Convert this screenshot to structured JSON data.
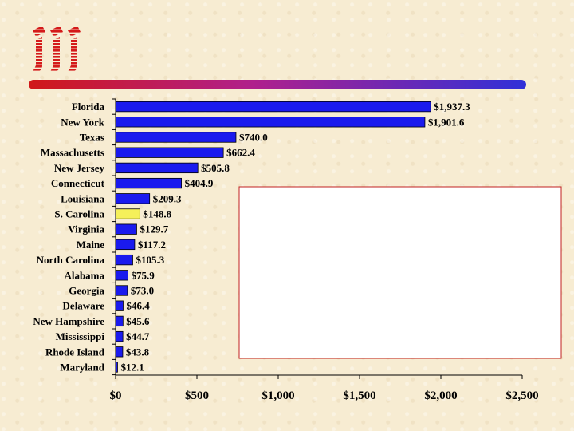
{
  "logo": {
    "name": "iii"
  },
  "chart_data": {
    "type": "bar",
    "orientation": "horizontal",
    "categories": [
      "Florida",
      "New York",
      "Texas",
      "Massachusetts",
      "New Jersey",
      "Connecticut",
      "Louisiana",
      "S. Carolina",
      "Virginia",
      "Maine",
      "North Carolina",
      "Alabama",
      "Georgia",
      "Delaware",
      "New Hampshire",
      "Mississippi",
      "Rhode Island",
      "Maryland"
    ],
    "values": [
      1937.3,
      1901.6,
      740.0,
      662.4,
      505.8,
      404.9,
      209.3,
      148.8,
      129.7,
      117.2,
      105.3,
      75.9,
      73.0,
      46.4,
      45.6,
      44.7,
      43.8,
      12.1
    ],
    "value_labels": [
      "$1,937.3",
      "$1,901.6",
      "$740.0",
      "$662.4",
      "$505.8",
      "$404.9",
      "$209.3",
      "$148.8",
      "$129.7",
      "$117.2",
      "$105.3",
      "$75.9",
      "$73.0",
      "$46.4",
      "$45.6",
      "$44.7",
      "$43.8",
      "$12.1"
    ],
    "highlight_index": 7,
    "xlim": [
      0,
      2500
    ],
    "ticks": [
      0,
      500,
      1000,
      1500,
      2000,
      2500
    ],
    "tick_labels": [
      "$0",
      "$500",
      "$1,000",
      "$1,500",
      "$2,000",
      "$2,500"
    ],
    "colors": {
      "bar": "#1a1aee",
      "highlight": "#f5f05a",
      "edge": "#000000",
      "callout_border": "#c02020"
    },
    "title": "",
    "xlabel": "",
    "ylabel": ""
  }
}
